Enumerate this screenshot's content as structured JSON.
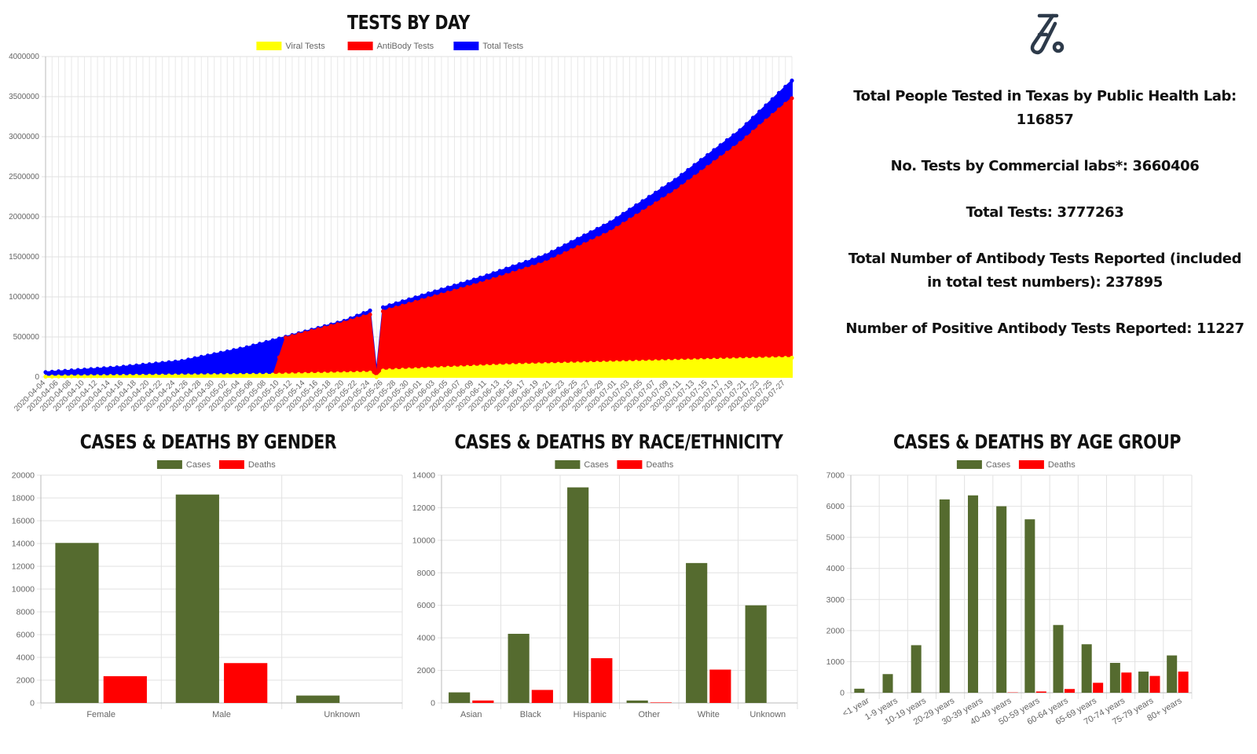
{
  "colors": {
    "green": "#556b2f",
    "red": "#ff0000",
    "blue": "#0000ff",
    "yellow": "#ffff00",
    "grid": "#e5e5e5"
  },
  "stats": {
    "icon": "test-tube-icon",
    "items": [
      "Total People Tested in Texas by Public Health Lab: 116857",
      "No. Tests by Commercial labs*: 3660406",
      "Total Tests: 3777263",
      "Total Number of Antibody Tests Reported (included in total test numbers): 237895",
      "Number of Positive Antibody Tests Reported: 11227"
    ]
  },
  "chart_data": [
    {
      "id": "tests",
      "type": "area",
      "title": "TESTS BY DAY",
      "x_start": "2020-04-04",
      "x_end": "2020-07-28",
      "x_tick_labels": [
        "2020-04-04",
        "2020-04-06",
        "2020-04-08",
        "2020-04-10",
        "2020-04-12",
        "2020-04-14",
        "2020-04-16",
        "2020-04-18",
        "2020-04-20",
        "2020-04-22",
        "2020-04-24",
        "2020-04-26",
        "2020-04-28",
        "2020-04-30",
        "2020-05-02",
        "2020-05-04",
        "2020-05-06",
        "2020-05-08",
        "2020-05-10",
        "2020-05-12",
        "2020-05-14",
        "2020-05-16",
        "2020-05-18",
        "2020-05-20",
        "2020-05-22",
        "2020-05-24",
        "2020-05-26",
        "2020-05-28",
        "2020-05-30",
        "2020-06-01",
        "2020-06-03",
        "2020-06-05",
        "2020-06-07",
        "2020-06-09",
        "2020-06-11",
        "2020-06-13",
        "2020-06-15",
        "2020-06-17",
        "2020-06-19",
        "2020-06-21",
        "2020-06-23",
        "2020-06-25",
        "2020-06-27",
        "2020-06-29",
        "2020-07-01",
        "2020-07-03",
        "2020-07-05",
        "2020-07-07",
        "2020-07-09",
        "2020-07-11",
        "2020-07-13",
        "2020-07-15",
        "2020-07-17",
        "2020-07-19",
        "2020-07-21",
        "2020-07-23",
        "2020-07-25",
        "2020-07-27"
      ],
      "y_ticks": [
        0,
        500000,
        1000000,
        1500000,
        2000000,
        2500000,
        3000000,
        3500000,
        4000000
      ],
      "ylim": [
        0,
        4000000
      ],
      "legend": "top",
      "series": [
        {
          "name": "Viral Tests",
          "color": "#ffff00",
          "points": [
            [
              "2020-04-04",
              5000
            ],
            [
              "2020-05-10",
              30000
            ],
            [
              "2020-05-24",
              55000
            ],
            [
              "2020-05-25",
              0
            ],
            [
              "2020-05-26",
              80000
            ],
            [
              "2020-06-15",
              150000
            ],
            [
              "2020-07-28",
              240000
            ]
          ]
        },
        {
          "name": "AntiBody Tests",
          "color": "#ff0000",
          "points": [
            [
              "2020-04-04",
              0
            ],
            [
              "2020-05-09",
              0
            ],
            [
              "2020-05-11",
              490000
            ],
            [
              "2020-05-20",
              680000
            ],
            [
              "2020-05-24",
              780000
            ],
            [
              "2020-05-25",
              0
            ],
            [
              "2020-05-26",
              820000
            ],
            [
              "2020-06-10",
              1170000
            ],
            [
              "2020-06-20",
              1430000
            ],
            [
              "2020-06-30",
              1810000
            ],
            [
              "2020-07-10",
              2320000
            ],
            [
              "2020-07-20",
              2920000
            ],
            [
              "2020-07-28",
              3480000
            ]
          ]
        },
        {
          "name": "Total Tests",
          "color": "#0000ff",
          "points": [
            [
              "2020-04-04",
              60000
            ],
            [
              "2020-04-15",
              120000
            ],
            [
              "2020-04-25",
              200000
            ],
            [
              "2020-05-05",
              370000
            ],
            [
              "2020-05-10",
              480000
            ],
            [
              "2020-05-20",
              700000
            ],
            [
              "2020-05-24",
              830000
            ],
            [
              "2020-05-25",
              60000
            ],
            [
              "2020-05-26",
              870000
            ],
            [
              "2020-06-10",
              1240000
            ],
            [
              "2020-06-20",
              1520000
            ],
            [
              "2020-06-30",
              1930000
            ],
            [
              "2020-07-10",
              2460000
            ],
            [
              "2020-07-20",
              3080000
            ],
            [
              "2020-07-28",
              3700000
            ]
          ]
        }
      ]
    },
    {
      "id": "gender",
      "type": "bar",
      "title": "CASES & DEATHS BY GENDER",
      "categories": [
        "Female",
        "Male",
        "Unknown"
      ],
      "legend": "top",
      "series": [
        {
          "name": "Cases",
          "color": "#556b2f",
          "values": [
            14050,
            18300,
            650
          ]
        },
        {
          "name": "Deaths",
          "color": "#ff0000",
          "values": [
            2350,
            3500,
            0
          ]
        }
      ],
      "y_ticks": [
        0,
        2000,
        4000,
        6000,
        8000,
        10000,
        12000,
        14000,
        16000,
        18000,
        20000
      ],
      "ylim": [
        0,
        20000
      ]
    },
    {
      "id": "race",
      "type": "bar",
      "title": "CASES & DEATHS BY RACE/ETHNICITY",
      "categories": [
        "Asian",
        "Black",
        "Hispanic",
        "Other",
        "White",
        "Unknown"
      ],
      "legend": "top",
      "series": [
        {
          "name": "Cases",
          "color": "#556b2f",
          "values": [
            650,
            4250,
            13250,
            150,
            8600,
            6000
          ]
        },
        {
          "name": "Deaths",
          "color": "#ff0000",
          "values": [
            150,
            800,
            2750,
            30,
            2050,
            0
          ]
        }
      ],
      "y_ticks": [
        0,
        2000,
        4000,
        6000,
        8000,
        10000,
        12000,
        14000
      ],
      "ylim": [
        0,
        14000
      ]
    },
    {
      "id": "age",
      "type": "bar",
      "title": "CASES & DEATHS BY AGE GROUP",
      "categories": [
        "<1 year",
        "1-9 years",
        "10-19 years",
        "20-29 years",
        "30-39 years",
        "40-49 years",
        "50-59 years",
        "60-64 years",
        "65-69 years",
        "70-74 years",
        "75-79 years",
        "80+ years"
      ],
      "legend": "top",
      "series": [
        {
          "name": "Cases",
          "color": "#556b2f",
          "values": [
            130,
            600,
            1530,
            6220,
            6350,
            6000,
            5580,
            2180,
            1560,
            960,
            680,
            1200
          ]
        },
        {
          "name": "Deaths",
          "color": "#ff0000",
          "values": [
            0,
            0,
            0,
            0,
            0,
            10,
            40,
            120,
            320,
            650,
            540,
            680
          ]
        }
      ],
      "y_ticks": [
        0,
        1000,
        2000,
        3000,
        4000,
        5000,
        6000,
        7000
      ],
      "ylim": [
        0,
        7000
      ]
    }
  ]
}
